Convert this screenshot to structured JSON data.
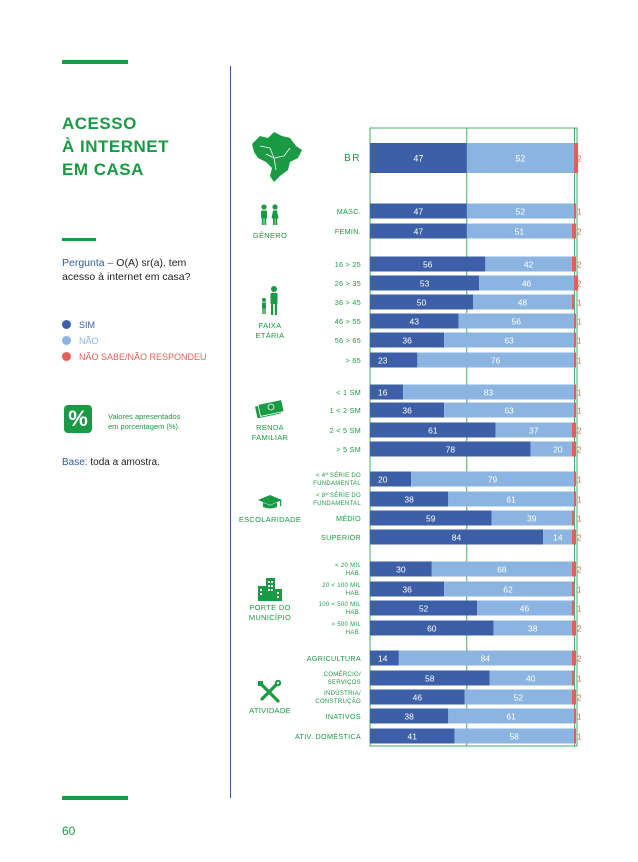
{
  "page": {
    "number": "60"
  },
  "title_lines": [
    "ACESSO",
    "À INTERNET",
    "EM CASA"
  ],
  "question": {
    "label": "Pergunta – ",
    "text": "O(A) sr(a). tem acesso à internet em casa?"
  },
  "legend": [
    {
      "label": "SIM",
      "color": "#3d5fa8"
    },
    {
      "label": "NÃO",
      "color": "#8bb4e1"
    },
    {
      "label": "NÃO SABE/NÃO RESPONDEU",
      "color": "#e06058"
    }
  ],
  "note": {
    "symbol": "%",
    "text_lines": [
      "Valores apresentados",
      "em porcentagem (%)."
    ]
  },
  "base": {
    "label": "Base:",
    "text": " toda a amostra."
  },
  "groups": [
    {
      "key": "genero",
      "label_lines": [
        "GÊNERO"
      ],
      "icon": "people-icon"
    },
    {
      "key": "faixa",
      "label_lines": [
        "FAIXA",
        "ETÁRIA"
      ],
      "icon": "family-icon"
    },
    {
      "key": "renda",
      "label_lines": [
        "RENDA",
        "FAMILIAR"
      ],
      "icon": "money-icon"
    },
    {
      "key": "escolaridade",
      "label_lines": [
        "ESCOLARIDADE"
      ],
      "icon": "graduation-cap-icon"
    },
    {
      "key": "porte",
      "label_lines": [
        "PORTE DO",
        "MUNICÍPIO"
      ],
      "icon": "buildings-icon"
    },
    {
      "key": "atividade",
      "label_lines": [
        "ATIVIDADE"
      ],
      "icon": "tools-icon"
    }
  ],
  "chart_data": {
    "type": "bar",
    "orientation": "horizontal",
    "stacked": true,
    "xlim": [
      0,
      100
    ],
    "series_names": [
      "SIM",
      "NÃO",
      "NÃO SABE/NÃO RESPONDEU"
    ],
    "rows": [
      {
        "group": "total",
        "label": [
          "BR"
        ],
        "values": [
          47,
          52,
          2
        ]
      },
      {
        "group": "genero",
        "label": [
          "MASC."
        ],
        "values": [
          47,
          52,
          1
        ]
      },
      {
        "group": "genero",
        "label": [
          "FEMIN."
        ],
        "values": [
          47,
          51,
          2
        ]
      },
      {
        "group": "faixa",
        "label": [
          "16 > 25"
        ],
        "values": [
          56,
          42,
          2
        ]
      },
      {
        "group": "faixa",
        "label": [
          "26 > 35"
        ],
        "values": [
          53,
          46,
          2
        ]
      },
      {
        "group": "faixa",
        "label": [
          "36 > 45"
        ],
        "values": [
          50,
          48,
          1
        ]
      },
      {
        "group": "faixa",
        "label": [
          "46 > 55"
        ],
        "values": [
          43,
          56,
          1
        ]
      },
      {
        "group": "faixa",
        "label": [
          "56 > 65"
        ],
        "values": [
          36,
          63,
          1
        ]
      },
      {
        "group": "faixa",
        "label": [
          "> 65"
        ],
        "values": [
          23,
          76,
          1
        ]
      },
      {
        "group": "renda",
        "label": [
          "< 1 SM"
        ],
        "values": [
          16,
          83,
          1
        ]
      },
      {
        "group": "renda",
        "label": [
          "1 < 2 SM"
        ],
        "values": [
          36,
          63,
          1
        ]
      },
      {
        "group": "renda",
        "label": [
          "2 < 5 SM"
        ],
        "values": [
          61,
          37,
          2
        ]
      },
      {
        "group": "renda",
        "label": [
          "> 5 SM"
        ],
        "values": [
          78,
          20,
          2
        ]
      },
      {
        "group": "escolaridade",
        "label": [
          "< 4ª SÉRIE DO",
          "FUNDAMENTAL"
        ],
        "values": [
          20,
          79,
          1
        ]
      },
      {
        "group": "escolaridade",
        "label": [
          "< 8ª SÉRIE DO",
          "FUNDAMENTAL"
        ],
        "values": [
          38,
          61,
          1
        ]
      },
      {
        "group": "escolaridade",
        "label": [
          "MÉDIO"
        ],
        "values": [
          59,
          39,
          1
        ]
      },
      {
        "group": "escolaridade",
        "label": [
          "SUPERIOR"
        ],
        "values": [
          84,
          14,
          2
        ]
      },
      {
        "group": "porte",
        "label": [
          "< 20 MIL",
          "HAB."
        ],
        "values": [
          30,
          68,
          2
        ]
      },
      {
        "group": "porte",
        "label": [
          "20 < 100 MIL",
          "HAB."
        ],
        "values": [
          36,
          62,
          1
        ]
      },
      {
        "group": "porte",
        "label": [
          "100 < 500 MIL",
          "HAB."
        ],
        "values": [
          52,
          46,
          1
        ]
      },
      {
        "group": "porte",
        "label": [
          "> 500 MIL",
          "HAB."
        ],
        "values": [
          60,
          38,
          2
        ]
      },
      {
        "group": "atividade",
        "label": [
          "AGRICULTURA"
        ],
        "values": [
          14,
          84,
          2
        ]
      },
      {
        "group": "atividade",
        "label": [
          "COMÉRCIO/",
          "SERVIÇOS"
        ],
        "values": [
          58,
          40,
          1
        ]
      },
      {
        "group": "atividade",
        "label": [
          "INDÚSTRIA/",
          "CONSTRUÇÃO"
        ],
        "values": [
          46,
          52,
          2
        ]
      },
      {
        "group": "atividade",
        "label": [
          "INATIVOS"
        ],
        "values": [
          38,
          61,
          1
        ]
      },
      {
        "group": "atividade",
        "label": [
          "ATIV. DOMÉSTICA"
        ],
        "values": [
          41,
          58,
          1
        ]
      }
    ],
    "colors": [
      "#3d5fa8",
      "#8bb4e1",
      "#e06058"
    ],
    "reference_value": 47
  }
}
